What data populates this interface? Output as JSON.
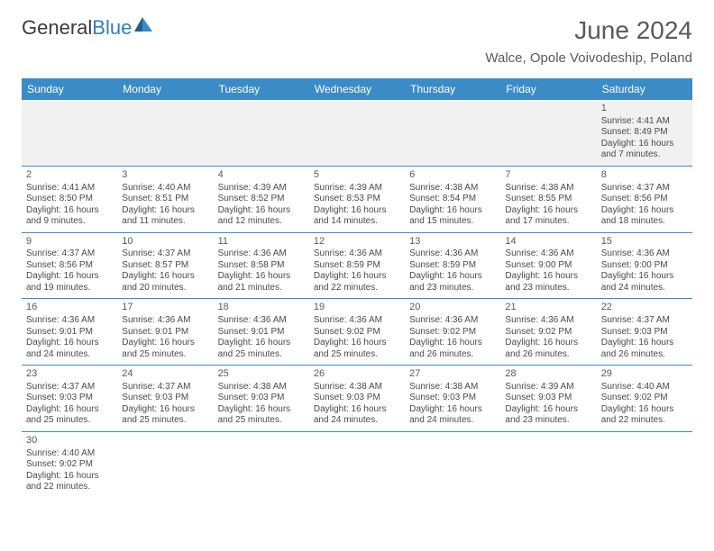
{
  "logo": {
    "text1": "General",
    "text2": "Blue",
    "mark_color": "#2f7fbf"
  },
  "title": "June 2024",
  "location": "Walce, Opole Voivodeship, Poland",
  "colors": {
    "header_bg": "#3b8bc6",
    "header_text": "#ffffff",
    "cell_border": "#3b8bc6",
    "alt_row_bg": "#f1f1f1",
    "text": "#4a4a4a",
    "title_text": "#595959"
  },
  "day_headers": [
    "Sunday",
    "Monday",
    "Tuesday",
    "Wednesday",
    "Thursday",
    "Friday",
    "Saturday"
  ],
  "weeks": [
    [
      null,
      null,
      null,
      null,
      null,
      null,
      {
        "n": "1",
        "sr": "Sunrise: 4:41 AM",
        "ss": "Sunset: 8:49 PM",
        "dl1": "Daylight: 16 hours",
        "dl2": "and 7 minutes."
      }
    ],
    [
      {
        "n": "2",
        "sr": "Sunrise: 4:41 AM",
        "ss": "Sunset: 8:50 PM",
        "dl1": "Daylight: 16 hours",
        "dl2": "and 9 minutes."
      },
      {
        "n": "3",
        "sr": "Sunrise: 4:40 AM",
        "ss": "Sunset: 8:51 PM",
        "dl1": "Daylight: 16 hours",
        "dl2": "and 11 minutes."
      },
      {
        "n": "4",
        "sr": "Sunrise: 4:39 AM",
        "ss": "Sunset: 8:52 PM",
        "dl1": "Daylight: 16 hours",
        "dl2": "and 12 minutes."
      },
      {
        "n": "5",
        "sr": "Sunrise: 4:39 AM",
        "ss": "Sunset: 8:53 PM",
        "dl1": "Daylight: 16 hours",
        "dl2": "and 14 minutes."
      },
      {
        "n": "6",
        "sr": "Sunrise: 4:38 AM",
        "ss": "Sunset: 8:54 PM",
        "dl1": "Daylight: 16 hours",
        "dl2": "and 15 minutes."
      },
      {
        "n": "7",
        "sr": "Sunrise: 4:38 AM",
        "ss": "Sunset: 8:55 PM",
        "dl1": "Daylight: 16 hours",
        "dl2": "and 17 minutes."
      },
      {
        "n": "8",
        "sr": "Sunrise: 4:37 AM",
        "ss": "Sunset: 8:56 PM",
        "dl1": "Daylight: 16 hours",
        "dl2": "and 18 minutes."
      }
    ],
    [
      {
        "n": "9",
        "sr": "Sunrise: 4:37 AM",
        "ss": "Sunset: 8:56 PM",
        "dl1": "Daylight: 16 hours",
        "dl2": "and 19 minutes."
      },
      {
        "n": "10",
        "sr": "Sunrise: 4:37 AM",
        "ss": "Sunset: 8:57 PM",
        "dl1": "Daylight: 16 hours",
        "dl2": "and 20 minutes."
      },
      {
        "n": "11",
        "sr": "Sunrise: 4:36 AM",
        "ss": "Sunset: 8:58 PM",
        "dl1": "Daylight: 16 hours",
        "dl2": "and 21 minutes."
      },
      {
        "n": "12",
        "sr": "Sunrise: 4:36 AM",
        "ss": "Sunset: 8:59 PM",
        "dl1": "Daylight: 16 hours",
        "dl2": "and 22 minutes."
      },
      {
        "n": "13",
        "sr": "Sunrise: 4:36 AM",
        "ss": "Sunset: 8:59 PM",
        "dl1": "Daylight: 16 hours",
        "dl2": "and 23 minutes."
      },
      {
        "n": "14",
        "sr": "Sunrise: 4:36 AM",
        "ss": "Sunset: 9:00 PM",
        "dl1": "Daylight: 16 hours",
        "dl2": "and 23 minutes."
      },
      {
        "n": "15",
        "sr": "Sunrise: 4:36 AM",
        "ss": "Sunset: 9:00 PM",
        "dl1": "Daylight: 16 hours",
        "dl2": "and 24 minutes."
      }
    ],
    [
      {
        "n": "16",
        "sr": "Sunrise: 4:36 AM",
        "ss": "Sunset: 9:01 PM",
        "dl1": "Daylight: 16 hours",
        "dl2": "and 24 minutes."
      },
      {
        "n": "17",
        "sr": "Sunrise: 4:36 AM",
        "ss": "Sunset: 9:01 PM",
        "dl1": "Daylight: 16 hours",
        "dl2": "and 25 minutes."
      },
      {
        "n": "18",
        "sr": "Sunrise: 4:36 AM",
        "ss": "Sunset: 9:01 PM",
        "dl1": "Daylight: 16 hours",
        "dl2": "and 25 minutes."
      },
      {
        "n": "19",
        "sr": "Sunrise: 4:36 AM",
        "ss": "Sunset: 9:02 PM",
        "dl1": "Daylight: 16 hours",
        "dl2": "and 25 minutes."
      },
      {
        "n": "20",
        "sr": "Sunrise: 4:36 AM",
        "ss": "Sunset: 9:02 PM",
        "dl1": "Daylight: 16 hours",
        "dl2": "and 26 minutes."
      },
      {
        "n": "21",
        "sr": "Sunrise: 4:36 AM",
        "ss": "Sunset: 9:02 PM",
        "dl1": "Daylight: 16 hours",
        "dl2": "and 26 minutes."
      },
      {
        "n": "22",
        "sr": "Sunrise: 4:37 AM",
        "ss": "Sunset: 9:03 PM",
        "dl1": "Daylight: 16 hours",
        "dl2": "and 26 minutes."
      }
    ],
    [
      {
        "n": "23",
        "sr": "Sunrise: 4:37 AM",
        "ss": "Sunset: 9:03 PM",
        "dl1": "Daylight: 16 hours",
        "dl2": "and 25 minutes."
      },
      {
        "n": "24",
        "sr": "Sunrise: 4:37 AM",
        "ss": "Sunset: 9:03 PM",
        "dl1": "Daylight: 16 hours",
        "dl2": "and 25 minutes."
      },
      {
        "n": "25",
        "sr": "Sunrise: 4:38 AM",
        "ss": "Sunset: 9:03 PM",
        "dl1": "Daylight: 16 hours",
        "dl2": "and 25 minutes."
      },
      {
        "n": "26",
        "sr": "Sunrise: 4:38 AM",
        "ss": "Sunset: 9:03 PM",
        "dl1": "Daylight: 16 hours",
        "dl2": "and 24 minutes."
      },
      {
        "n": "27",
        "sr": "Sunrise: 4:38 AM",
        "ss": "Sunset: 9:03 PM",
        "dl1": "Daylight: 16 hours",
        "dl2": "and 24 minutes."
      },
      {
        "n": "28",
        "sr": "Sunrise: 4:39 AM",
        "ss": "Sunset: 9:03 PM",
        "dl1": "Daylight: 16 hours",
        "dl2": "and 23 minutes."
      },
      {
        "n": "29",
        "sr": "Sunrise: 4:40 AM",
        "ss": "Sunset: 9:02 PM",
        "dl1": "Daylight: 16 hours",
        "dl2": "and 22 minutes."
      }
    ],
    [
      {
        "n": "30",
        "sr": "Sunrise: 4:40 AM",
        "ss": "Sunset: 9:02 PM",
        "dl1": "Daylight: 16 hours",
        "dl2": "and 22 minutes."
      },
      null,
      null,
      null,
      null,
      null,
      null
    ]
  ]
}
